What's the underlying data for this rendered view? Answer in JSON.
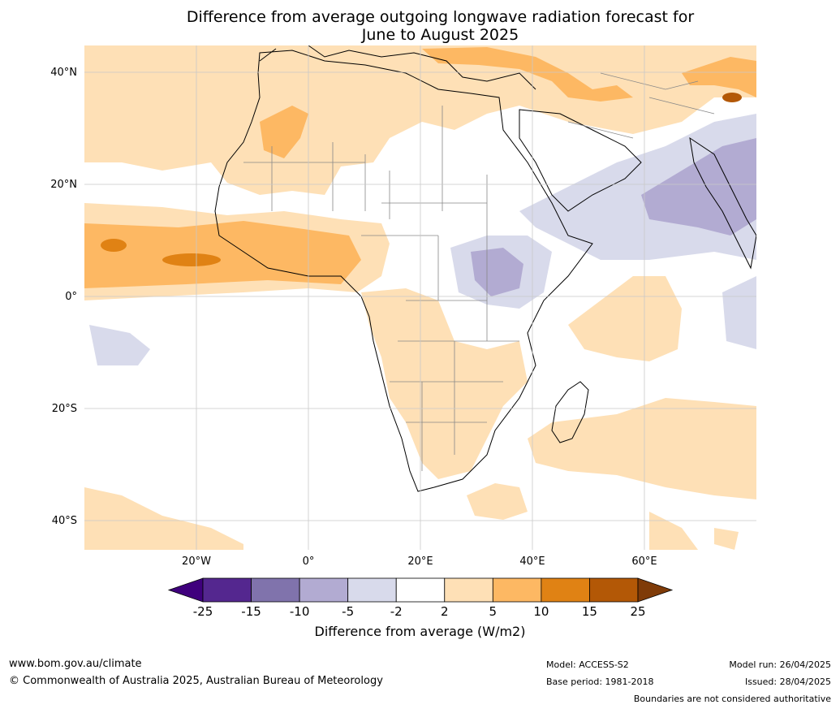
{
  "title_line1": "Difference from average outgoing longwave radiation forecast for",
  "title_line2": "June to August 2025",
  "lat_labels": [
    "40°N",
    "20°N",
    "0°",
    "20°S",
    "40°S"
  ],
  "lon_labels": [
    "20°W",
    "0°",
    "20°E",
    "40°E",
    "60°E"
  ],
  "colorbar": {
    "ticks": [
      "-25",
      "-15",
      "-10",
      "-5",
      "-2",
      "2",
      "5",
      "10",
      "15",
      "25"
    ],
    "colors": [
      "#3f007d",
      "#54278f",
      "#8073ac",
      "#b2abd2",
      "#d8daeb",
      "#ffffff",
      "#fee0b6",
      "#fdb863",
      "#e08214",
      "#b35806",
      "#7f3b08"
    ],
    "label": "Difference from average (W/m2)"
  },
  "footer": {
    "url": "www.bom.gov.au/climate",
    "copyright": "© Commonwealth of Australia 2025, Australian Bureau of Meteorology",
    "model": "Model: ACCESS-S2",
    "base_period": "Base period: 1981-2018",
    "model_run": "Model run: 26/04/2025",
    "issued": "Issued: 28/04/2025",
    "disclaimer": "Boundaries are not considered authoritative"
  }
}
